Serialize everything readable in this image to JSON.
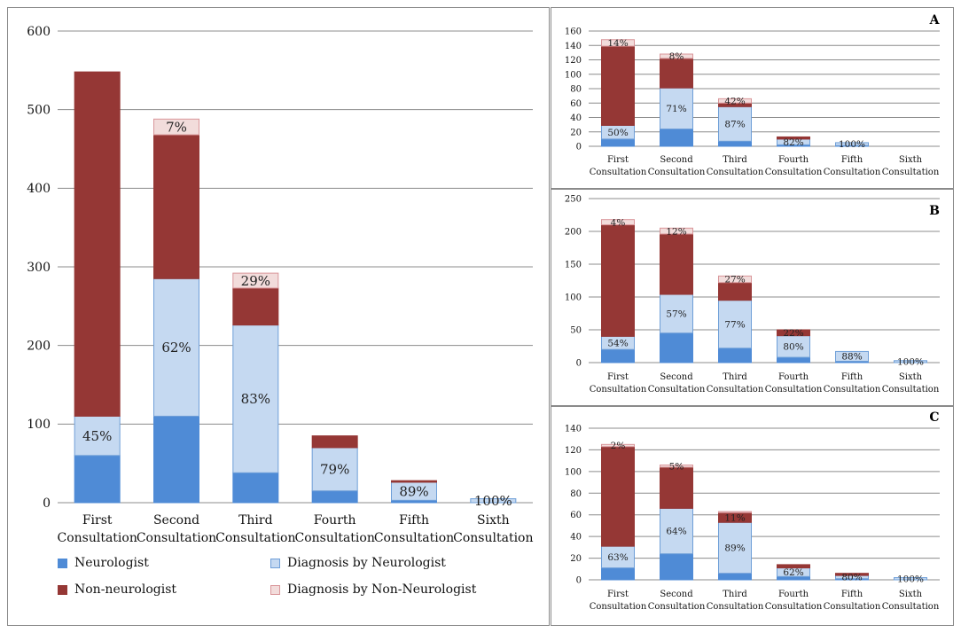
{
  "colors": {
    "neurologist": "#4f8bd6",
    "diagnosis_neurologist": "#c5d9f1",
    "non_neurologist": "#953735",
    "diagnosis_non_neurologist": "#f2dcdb",
    "diagnosis_neurologist_border": "#6f9fd8",
    "diagnosis_non_neurologist_border": "#d9969a",
    "grid": "#8c8c8c"
  },
  "legend": [
    {
      "key": "neurologist",
      "label": "Neurologist"
    },
    {
      "key": "diagnosis_neurologist",
      "label": "Diagnosis by Neurologist"
    },
    {
      "key": "non_neurologist",
      "label": "Non-neurologist"
    },
    {
      "key": "diagnosis_non_neurologist",
      "label": "Diagnosis by Non-Neurologist"
    }
  ],
  "chart_data": [
    {
      "id": "main",
      "panel_label": "",
      "type": "bar",
      "stacked": true,
      "categories": [
        "First\nConsultation",
        "Second\nConsultation",
        "Third\nConsultation",
        "Fourth\nConsultation",
        "Fifth\nConsultation",
        "Sixth\nConsultation"
      ],
      "ylim": [
        0,
        600
      ],
      "yticks": [
        0,
        100,
        200,
        300,
        400,
        500,
        600
      ],
      "grid": true,
      "series": [
        {
          "name": "Neurologist",
          "key": "neurologist",
          "values": [
            60,
            110,
            38,
            15,
            3,
            0
          ]
        },
        {
          "name": "Diagnosis by Neurologist",
          "key": "diagnosis_neurologist",
          "values": [
            50,
            175,
            188,
            55,
            23,
            5
          ]
        },
        {
          "name": "Non-neurologist",
          "key": "non_neurologist",
          "values": [
            438,
            183,
            47,
            15,
            2,
            0
          ]
        },
        {
          "name": "Diagnosis by Non-Neurologist",
          "key": "diagnosis_non_neurologist",
          "values": [
            0,
            20,
            19,
            0,
            0,
            0
          ]
        }
      ],
      "labels": [
        {
          "cat": 0,
          "series": 1,
          "text": "45%"
        },
        {
          "cat": 1,
          "series": 1,
          "text": "62%"
        },
        {
          "cat": 2,
          "series": 1,
          "text": "83%"
        },
        {
          "cat": 3,
          "series": 1,
          "text": "79%"
        },
        {
          "cat": 4,
          "series": 1,
          "text": "89%"
        },
        {
          "cat": 5,
          "series": 1,
          "text": "100%"
        },
        {
          "cat": 1,
          "series": 3,
          "text": "7%"
        },
        {
          "cat": 2,
          "series": 3,
          "text": "29%"
        }
      ]
    },
    {
      "id": "A",
      "panel_label": "A",
      "type": "bar",
      "stacked": true,
      "categories": [
        "First\nConsultation",
        "Second\nConsultation",
        "Third\nConsultation",
        "Fourth\nConsultation",
        "Fifth\nConsultation",
        "Sixth\nConsultation"
      ],
      "ylim": [
        0,
        160
      ],
      "yticks": [
        0,
        20,
        40,
        60,
        80,
        100,
        120,
        140,
        160
      ],
      "grid": true,
      "series": [
        {
          "name": "Neurologist",
          "key": "neurologist",
          "values": [
            10,
            24,
            7,
            2,
            1,
            0
          ]
        },
        {
          "name": "Diagnosis by Neurologist",
          "key": "diagnosis_neurologist",
          "values": [
            19,
            57,
            48,
            8,
            4,
            0
          ]
        },
        {
          "name": "Non-neurologist",
          "key": "non_neurologist",
          "values": [
            110,
            41,
            5,
            3,
            0,
            0
          ]
        },
        {
          "name": "Diagnosis by Non-Neurologist",
          "key": "diagnosis_non_neurologist",
          "values": [
            9,
            6,
            6,
            0,
            0,
            0
          ]
        }
      ],
      "labels": [
        {
          "cat": 0,
          "series": 1,
          "text": "50%"
        },
        {
          "cat": 1,
          "series": 1,
          "text": "71%"
        },
        {
          "cat": 2,
          "series": 1,
          "text": "87%"
        },
        {
          "cat": 3,
          "series": 1,
          "text": "82%"
        },
        {
          "cat": 4,
          "series": 1,
          "text": "100%"
        },
        {
          "cat": 0,
          "series": 3,
          "text": "14%"
        },
        {
          "cat": 1,
          "series": 3,
          "text": "8%"
        },
        {
          "cat": 2,
          "series": 3,
          "text": "42%"
        }
      ]
    },
    {
      "id": "B",
      "panel_label": "B",
      "type": "bar",
      "stacked": true,
      "categories": [
        "First\nConsultation",
        "Second\nConsultation",
        "Third\nConsultation",
        "Fourth\nConsultation",
        "Fifth\nConsultation",
        "Sixth\nConsultation"
      ],
      "ylim": [
        0,
        250
      ],
      "yticks": [
        0,
        50,
        100,
        150,
        200,
        250
      ],
      "grid": true,
      "series": [
        {
          "name": "Neurologist",
          "key": "neurologist",
          "values": [
            20,
            45,
            22,
            8,
            2,
            0
          ]
        },
        {
          "name": "Diagnosis by Neurologist",
          "key": "diagnosis_neurologist",
          "values": [
            20,
            59,
            73,
            33,
            15,
            3
          ]
        },
        {
          "name": "Non-neurologist",
          "key": "non_neurologist",
          "values": [
            170,
            92,
            27,
            9,
            0,
            0
          ]
        },
        {
          "name": "Diagnosis by Non-Neurologist",
          "key": "diagnosis_non_neurologist",
          "values": [
            8,
            9,
            10,
            0,
            0,
            0
          ]
        }
      ],
      "labels": [
        {
          "cat": 0,
          "series": 1,
          "text": "54%"
        },
        {
          "cat": 1,
          "series": 1,
          "text": "57%"
        },
        {
          "cat": 2,
          "series": 1,
          "text": "77%"
        },
        {
          "cat": 3,
          "series": 1,
          "text": "80%"
        },
        {
          "cat": 4,
          "series": 1,
          "text": "88%"
        },
        {
          "cat": 5,
          "series": 1,
          "text": "100%"
        },
        {
          "cat": 0,
          "series": 3,
          "text": "4%"
        },
        {
          "cat": 1,
          "series": 3,
          "text": "12%"
        },
        {
          "cat": 2,
          "series": 3,
          "text": "27%"
        },
        {
          "cat": 3,
          "series": 2,
          "text": "22%"
        }
      ]
    },
    {
      "id": "C",
      "panel_label": "C",
      "type": "bar",
      "stacked": true,
      "categories": [
        "First\nConsultation",
        "Second\nConsultation",
        "Third\nConsultation",
        "Fourth\nConsultation",
        "Fifth\nConsultation",
        "Sixth\nConsultation"
      ],
      "ylim": [
        0,
        140
      ],
      "yticks": [
        0,
        20,
        40,
        60,
        80,
        100,
        120,
        140
      ],
      "grid": true,
      "series": [
        {
          "name": "Neurologist",
          "key": "neurologist",
          "values": [
            11,
            24,
            6,
            3,
            1,
            0
          ]
        },
        {
          "name": "Diagnosis by Neurologist",
          "key": "diagnosis_neurologist",
          "values": [
            20,
            42,
            47,
            8,
            3,
            2
          ]
        },
        {
          "name": "Non-neurologist",
          "key": "non_neurologist",
          "values": [
            92,
            38,
            9,
            3,
            2,
            0
          ]
        },
        {
          "name": "Diagnosis by Non-Neurologist",
          "key": "diagnosis_non_neurologist",
          "values": [
            2,
            2,
            1,
            0,
            0,
            0
          ]
        }
      ],
      "labels": [
        {
          "cat": 0,
          "series": 1,
          "text": "63%"
        },
        {
          "cat": 1,
          "series": 1,
          "text": "64%"
        },
        {
          "cat": 2,
          "series": 1,
          "text": "89%"
        },
        {
          "cat": 3,
          "series": 1,
          "text": "62%"
        },
        {
          "cat": 4,
          "series": 1,
          "text": "80%"
        },
        {
          "cat": 5,
          "series": 1,
          "text": "100%"
        },
        {
          "cat": 0,
          "series": 3,
          "text": "2%"
        },
        {
          "cat": 1,
          "series": 3,
          "text": "5%"
        },
        {
          "cat": 2,
          "series": 2,
          "text": "11%"
        }
      ]
    }
  ]
}
